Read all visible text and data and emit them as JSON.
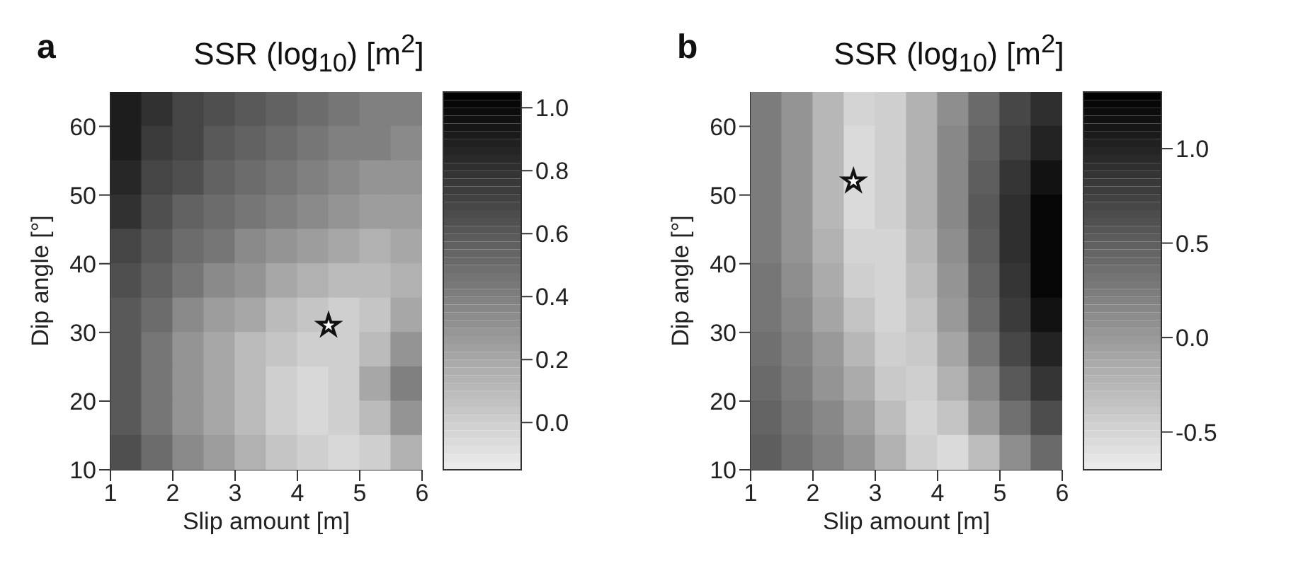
{
  "chart_data": [
    {
      "type": "heatmap",
      "title": "SSR (log$_{10}$) [m$^{2}$]",
      "annotations": [
        "a"
      ],
      "marker": "star",
      "series": [
        {
          "type": "scatter",
          "x": [
            4.5
          ],
          "values": [
            31
          ]
        }
      ],
      "xlabel": "Slip amount [m]",
      "ylabel": "Dip angle [°]",
      "xlim": [
        1,
        6
      ],
      "xticks": [
        1,
        2,
        3,
        4,
        5,
        6
      ],
      "ylim": [
        10,
        65
      ],
      "yticks": [
        10,
        20,
        30,
        40,
        50,
        60
      ],
      "clim": [
        -0.15,
        1.05
      ],
      "cticks": [
        {
          "value": 0,
          "label": "0.0"
        },
        {
          "value": 0.2,
          "label": "0.2"
        },
        {
          "value": 0.4,
          "label": "0.4"
        },
        {
          "value": 0.6,
          "label": "0.6"
        },
        {
          "value": 0.8,
          "label": "0.8"
        },
        {
          "value": 1,
          "label": "1.0"
        }
      ],
      "cells": [
        [
          0.9,
          0.8,
          0.7,
          0.65,
          0.6,
          0.55,
          0.5,
          0.45,
          0.4,
          0.4
        ],
        [
          0.9,
          0.75,
          0.7,
          0.6,
          0.55,
          0.5,
          0.45,
          0.4,
          0.4,
          0.35
        ],
        [
          0.85,
          0.7,
          0.65,
          0.55,
          0.5,
          0.45,
          0.4,
          0.35,
          0.3,
          0.3
        ],
        [
          0.8,
          0.65,
          0.55,
          0.5,
          0.45,
          0.4,
          0.35,
          0.3,
          0.25,
          0.25
        ],
        [
          0.7,
          0.6,
          0.5,
          0.45,
          0.35,
          0.3,
          0.25,
          0.2,
          0.15,
          0.2
        ],
        [
          0.65,
          0.55,
          0.45,
          0.35,
          0.3,
          0.2,
          0.15,
          0.1,
          0.1,
          0.15
        ],
        [
          0.6,
          0.5,
          0.35,
          0.25,
          0.2,
          0.1,
          0.05,
          0,
          0.05,
          0.2
        ],
        [
          0.6,
          0.45,
          0.3,
          0.2,
          0.1,
          0.05,
          0,
          0,
          0.1,
          0.3
        ],
        [
          0.6,
          0.45,
          0.3,
          0.2,
          0.1,
          0,
          -0.05,
          0,
          0.2,
          0.4
        ],
        [
          0.6,
          0.45,
          0.3,
          0.2,
          0.1,
          0,
          -0.05,
          0,
          0.1,
          0.3
        ],
        [
          0.65,
          0.5,
          0.35,
          0.25,
          0.15,
          0.05,
          0,
          -0.05,
          0,
          0.15
        ]
      ]
    },
    {
      "type": "heatmap",
      "title": "SSR (log$_{10}$) [m$^{2}$]",
      "annotations": [
        "b"
      ],
      "marker": "star",
      "series": [
        {
          "type": "scatter",
          "x": [
            2.65
          ],
          "values": [
            52
          ]
        }
      ],
      "xlabel": "Slip amount [m]",
      "ylabel": "Dip angle [°]",
      "xlim": [
        1,
        6
      ],
      "xticks": [
        1,
        2,
        3,
        4,
        5,
        6
      ],
      "ylim": [
        10,
        65
      ],
      "yticks": [
        10,
        20,
        30,
        40,
        50,
        60
      ],
      "clim": [
        -0.7,
        1.3
      ],
      "cticks": [
        {
          "value": -0.5,
          "label": "-0.5"
        },
        {
          "value": 0,
          "label": "0.0"
        },
        {
          "value": 0.5,
          "label": "0.5"
        },
        {
          "value": 1,
          "label": "1.0"
        }
      ],
      "cells": [
        [
          0.25,
          0.05,
          -0.25,
          -0.5,
          -0.45,
          -0.2,
          0.1,
          0.4,
          0.7,
          0.9
        ],
        [
          0.25,
          0.05,
          -0.25,
          -0.55,
          -0.45,
          -0.2,
          0.15,
          0.45,
          0.75,
          1
        ],
        [
          0.25,
          0.05,
          -0.25,
          -0.55,
          -0.45,
          -0.2,
          0.15,
          0.5,
          0.85,
          1.15
        ],
        [
          0.25,
          0.05,
          -0.25,
          -0.55,
          -0.45,
          -0.2,
          0.15,
          0.55,
          0.9,
          1.25
        ],
        [
          0.25,
          0.05,
          -0.2,
          -0.5,
          -0.5,
          -0.25,
          0.1,
          0.5,
          0.9,
          1.25
        ],
        [
          0.3,
          0.1,
          -0.15,
          -0.45,
          -0.5,
          -0.3,
          0.05,
          0.45,
          0.85,
          1.25
        ],
        [
          0.3,
          0.15,
          -0.1,
          -0.35,
          -0.5,
          -0.35,
          0,
          0.4,
          0.8,
          1.15
        ],
        [
          0.35,
          0.2,
          0,
          -0.25,
          -0.45,
          -0.4,
          -0.1,
          0.3,
          0.7,
          1
        ],
        [
          0.4,
          0.25,
          0.05,
          -0.15,
          -0.4,
          -0.45,
          -0.2,
          0.15,
          0.55,
          0.85
        ],
        [
          0.45,
          0.3,
          0.15,
          -0.05,
          -0.3,
          -0.5,
          -0.35,
          0,
          0.35,
          0.65
        ],
        [
          0.5,
          0.35,
          0.2,
          0.05,
          -0.2,
          -0.45,
          -0.55,
          -0.3,
          0.1,
          0.4
        ]
      ]
    }
  ]
}
